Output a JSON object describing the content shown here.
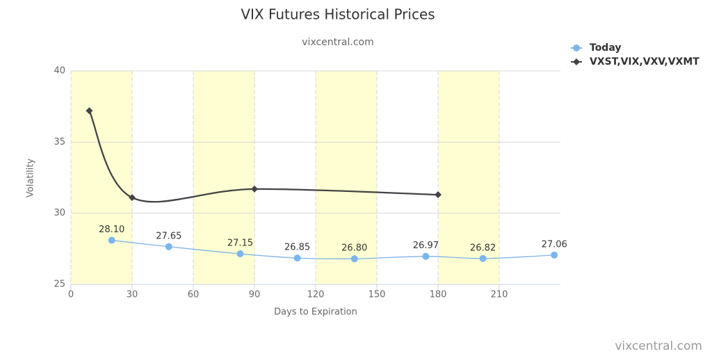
{
  "chart_data": {
    "type": "line",
    "title": "VIX Futures Historical Prices",
    "subtitle": "vixcentral.com",
    "credits": "vixcentral.com",
    "x_label": "Days to Expiration",
    "y_label": "Volatility",
    "xlim": [
      0,
      240
    ],
    "xticks": [
      0,
      30,
      60,
      90,
      120,
      150,
      180,
      210
    ],
    "ylim": [
      25,
      40
    ],
    "yticks": [
      25,
      30,
      35,
      40
    ],
    "grid": true,
    "legend": "top-right",
    "band_color": "#fefed2",
    "series": [
      {
        "name": "Today",
        "color": "#7cb5ec",
        "marker": "circle",
        "x": [
          20,
          48,
          83,
          111,
          139,
          174,
          202,
          237
        ],
        "values": [
          28.1,
          27.65,
          27.15,
          26.85,
          26.8,
          26.97,
          26.82,
          27.06
        ],
        "value_labels": [
          "28.10",
          "27.65",
          "27.15",
          "26.85",
          "26.80",
          "26.97",
          "26.82",
          "27.06"
        ]
      },
      {
        "name": "VXST,VIX,VXV,VXMT",
        "color": "#434348",
        "marker": "diamond",
        "x": [
          9,
          30,
          90,
          180
        ],
        "values": [
          37.2,
          31.1,
          31.7,
          31.3
        ]
      }
    ]
  }
}
